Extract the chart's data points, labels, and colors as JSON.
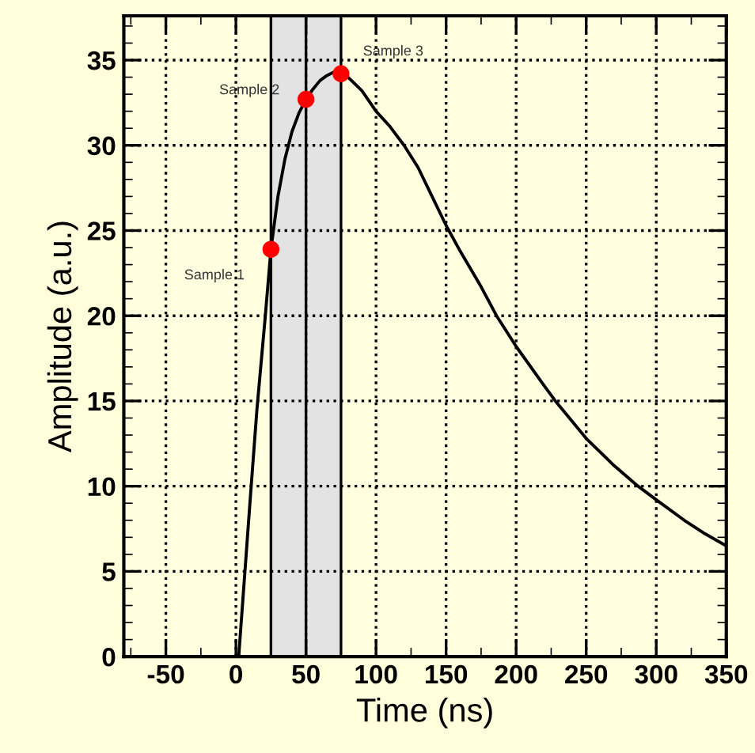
{
  "chart_data": {
    "type": "line",
    "xlabel": "Time (ns)",
    "ylabel": "Amplitude (a.u.)",
    "series": [
      {
        "color": "#000000",
        "x": [
          -80,
          0,
          2,
          10,
          15,
          21,
          25,
          30,
          35,
          40,
          45,
          50,
          55,
          60,
          65,
          70,
          75,
          80,
          85,
          90,
          100,
          110,
          120,
          130,
          140,
          150,
          160,
          175,
          186,
          200,
          220,
          228,
          235,
          250,
          270,
          287,
          300,
          320,
          335,
          350
        ],
        "values": [
          0,
          0,
          0,
          9,
          14.5,
          20,
          23.9,
          27,
          29.2,
          30.8,
          31.9,
          32.7,
          33.3,
          33.8,
          34.1,
          34.3,
          34.2,
          34.0,
          33.6,
          33.2,
          32,
          31.1,
          30,
          28.7,
          27,
          25.3,
          23.8,
          21.7,
          20,
          18.2,
          15.9,
          15,
          14.3,
          12.8,
          11.2,
          10,
          9.2,
          8,
          7.2,
          6.5
        ]
      },
      {
        "type": "scatter",
        "color": "#ff0000",
        "marker": "circle",
        "x": [
          25,
          50,
          75
        ],
        "values": [
          23.9,
          32.7,
          34.2
        ]
      }
    ],
    "annotations": [
      {
        "text": "Sample 1",
        "x": 25,
        "y": 23.9
      },
      {
        "text": "Sample 2",
        "x": 50,
        "y": 32.7
      },
      {
        "text": "Sample 3",
        "x": 75,
        "y": 34.2
      }
    ],
    "bands": [
      {
        "axis": "x",
        "from": 25,
        "to": 75,
        "color": "#e3e3e3"
      }
    ],
    "ref_lines": [
      {
        "axis": "x",
        "value": 25,
        "color": "#000000"
      },
      {
        "axis": "x",
        "value": 50,
        "color": "#000000"
      },
      {
        "axis": "x",
        "value": 75,
        "color": "#000000"
      }
    ],
    "xlim": [
      -80,
      350
    ],
    "xticks": [
      -50,
      0,
      50,
      100,
      150,
      200,
      250,
      300,
      350
    ],
    "ylim": [
      0,
      37.6
    ],
    "yticks": [
      0,
      5,
      10,
      15,
      20,
      25,
      30,
      35
    ],
    "grid": true,
    "line_style": "solid"
  }
}
